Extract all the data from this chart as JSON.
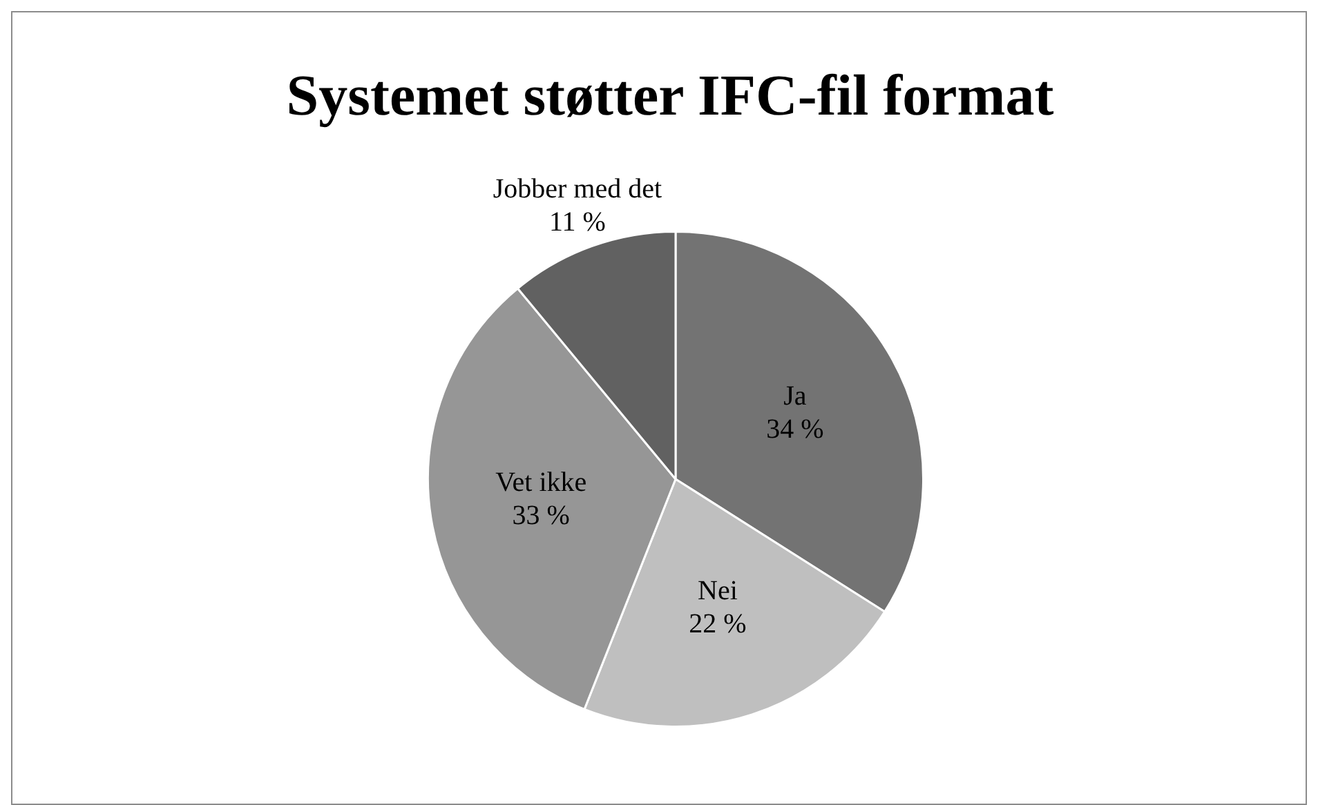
{
  "chart_data": {
    "type": "pie",
    "title": "Systemet støtter IFC-fil format",
    "categories": [
      "Ja",
      "Nei",
      "Vet ikke",
      "Jobber med det"
    ],
    "values": [
      34,
      22,
      33,
      11
    ],
    "value_labels": [
      "34 %",
      "22 %",
      "33 %",
      "11 %"
    ],
    "colors": [
      "#737373",
      "#bfbfbf",
      "#969696",
      "#616161"
    ],
    "legend": false
  }
}
